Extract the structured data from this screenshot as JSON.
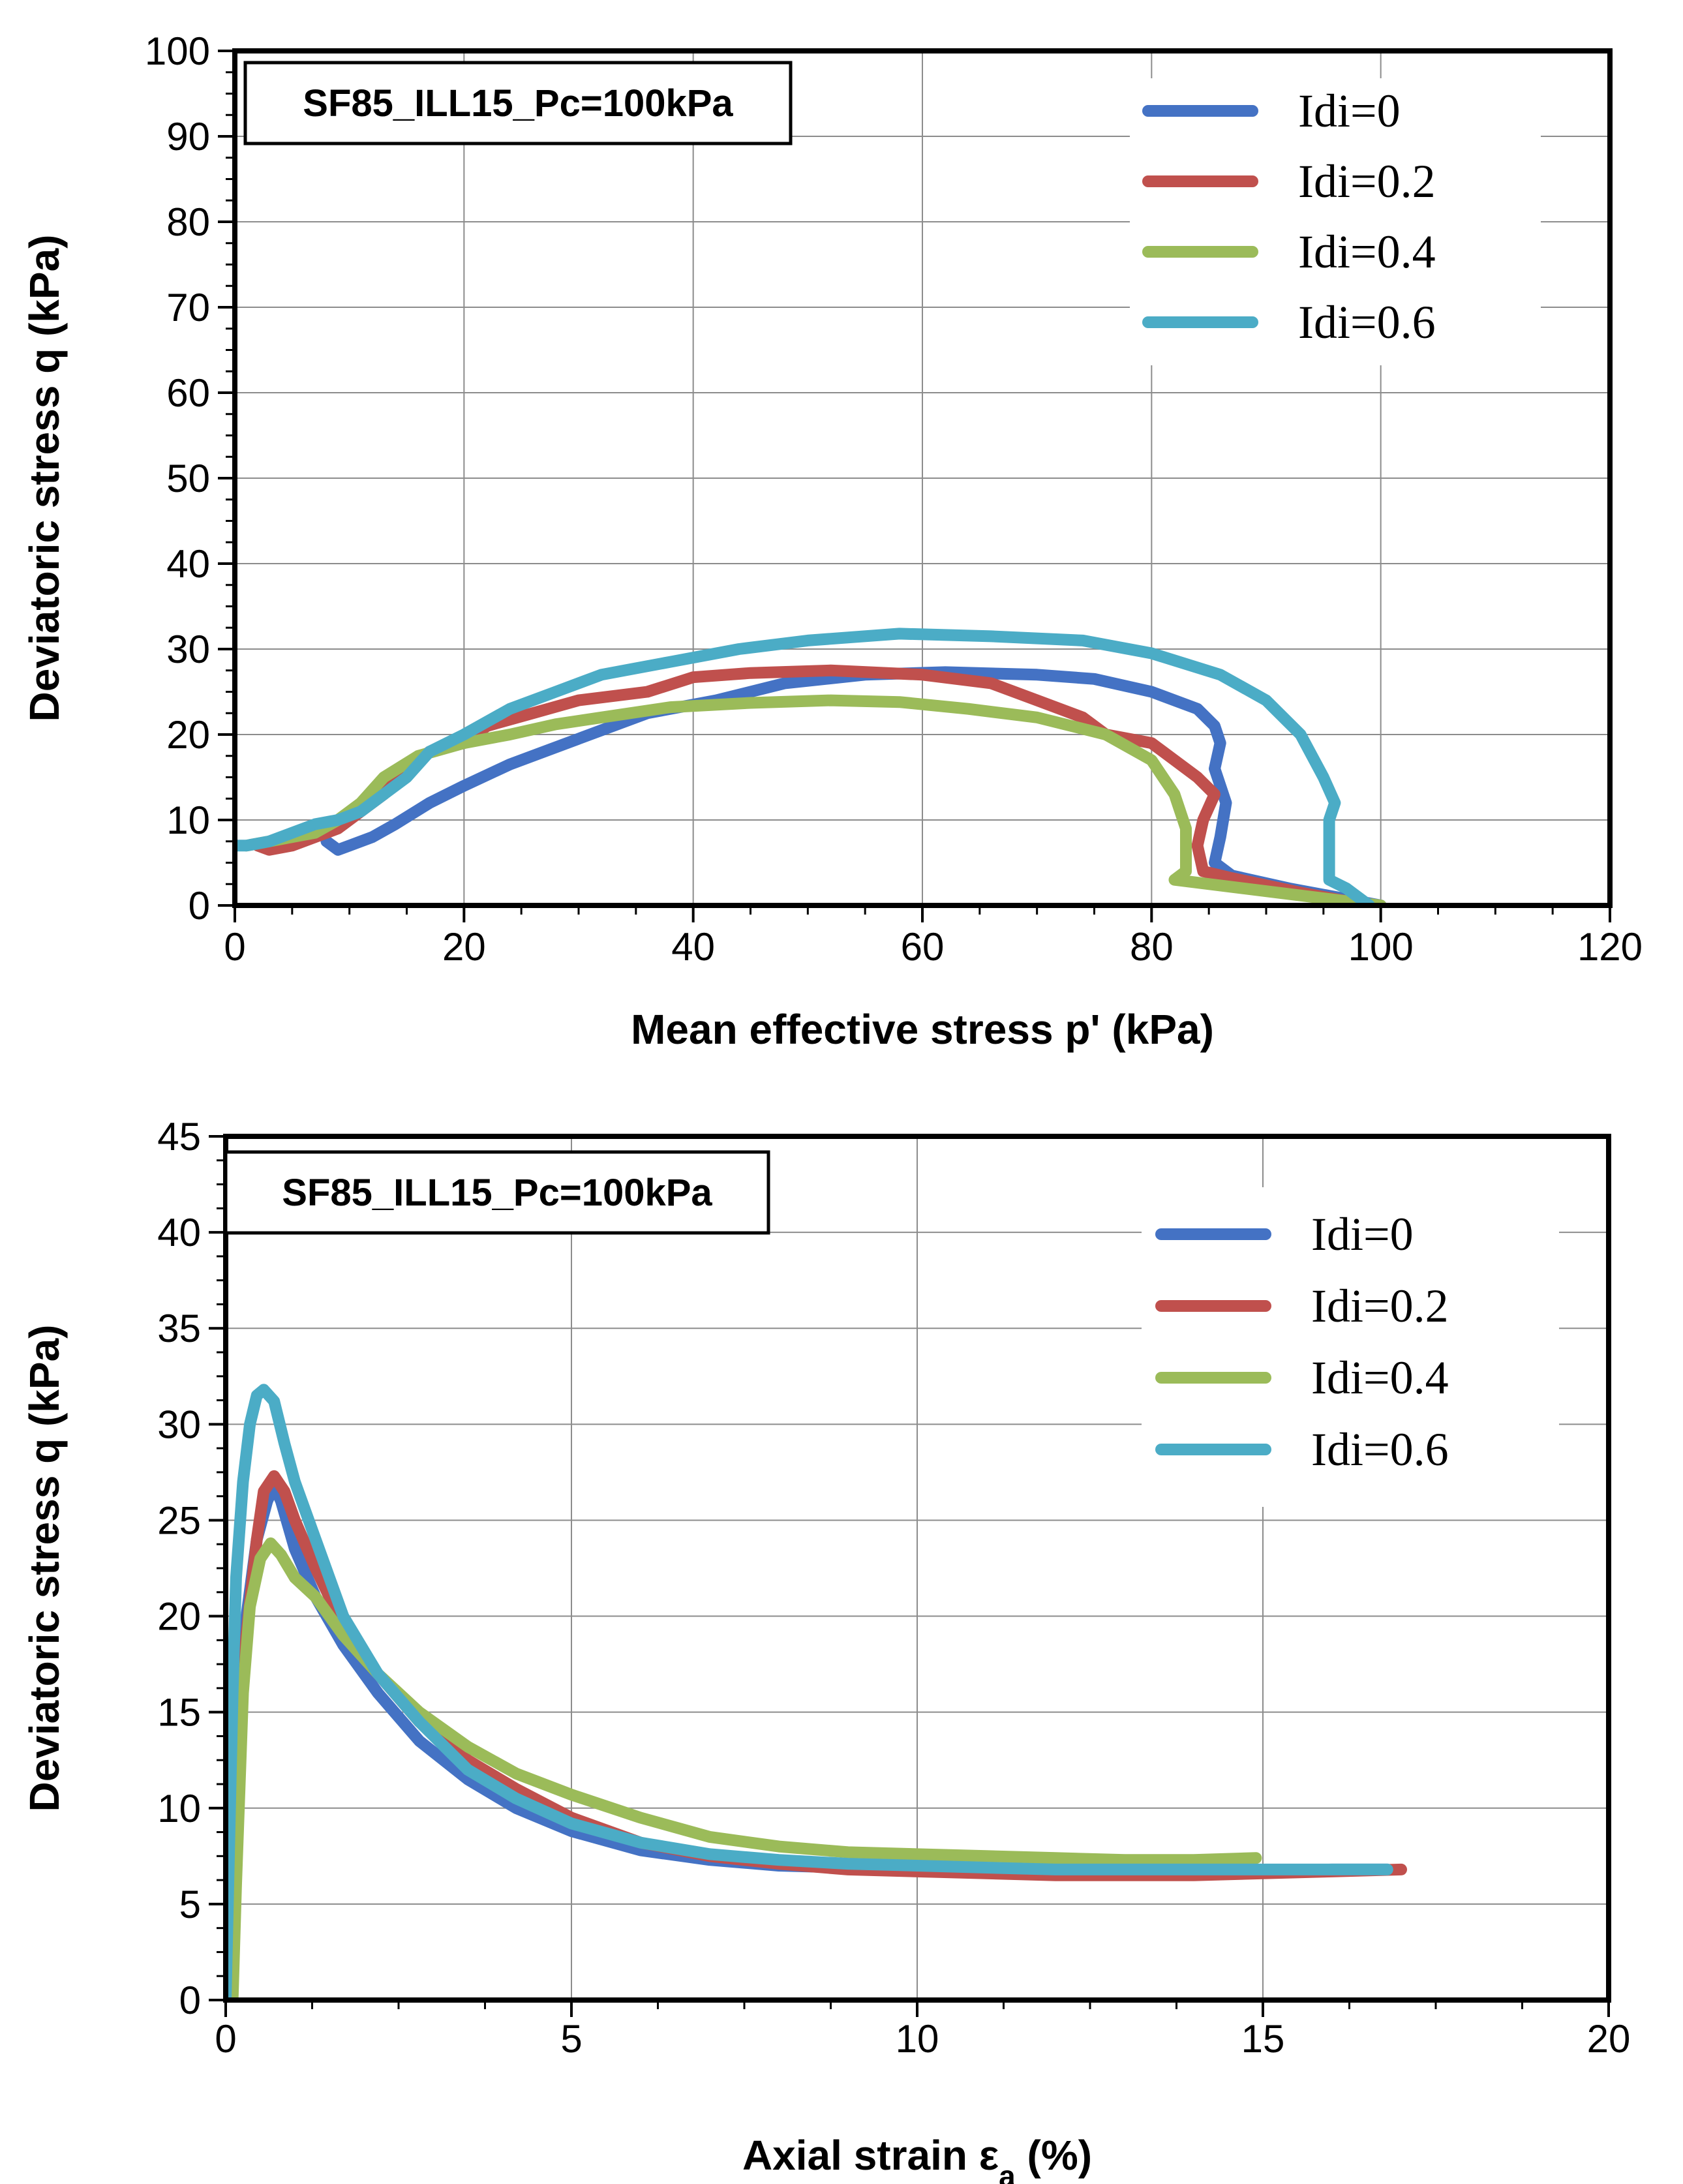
{
  "chart_data": [
    {
      "type": "line",
      "title": "SF85_ILL15_Pc=100kPa",
      "xlabel": "Mean effective stress p' (kPa)",
      "ylabel": "Deviatoric stress q (kPa)",
      "xlim": [
        0,
        120
      ],
      "ylim": [
        0,
        100
      ],
      "xticks": [
        0,
        20,
        40,
        60,
        80,
        100,
        120
      ],
      "yticks": [
        0,
        10,
        20,
        30,
        40,
        50,
        60,
        70,
        80,
        90,
        100
      ],
      "grid": true,
      "legend_position": "top-right",
      "series": [
        {
          "name": "Idi=0",
          "color": "#4472C4",
          "points": [
            [
              100,
              0
            ],
            [
              92,
              2
            ],
            [
              87,
              3.5
            ],
            [
              85.5,
              5
            ],
            [
              86,
              8
            ],
            [
              86.5,
              12
            ],
            [
              85.5,
              16
            ],
            [
              86,
              19
            ],
            [
              85.5,
              21
            ],
            [
              84,
              23
            ],
            [
              80,
              25
            ],
            [
              75,
              26.5
            ],
            [
              70,
              27
            ],
            [
              62,
              27.3
            ],
            [
              55,
              27
            ],
            [
              48,
              26
            ],
            [
              42,
              24
            ],
            [
              36,
              22.5
            ],
            [
              30,
              19.5
            ],
            [
              24,
              16.5
            ],
            [
              20,
              14
            ],
            [
              17,
              12
            ],
            [
              14,
              9.5
            ],
            [
              12,
              8
            ],
            [
              10,
              7
            ],
            [
              9,
              6.5
            ],
            [
              8.5,
              7
            ],
            [
              8,
              7.5
            ]
          ]
        },
        {
          "name": "Idi=0.2",
          "color": "#C0504D",
          "points": [
            [
              99,
              0
            ],
            [
              93,
              1.5
            ],
            [
              87,
              3.2
            ],
            [
              84.5,
              4
            ],
            [
              84,
              7
            ],
            [
              84.5,
              10
            ],
            [
              85.5,
              13
            ],
            [
              84,
              15
            ],
            [
              82,
              17
            ],
            [
              80,
              19
            ],
            [
              76,
              20
            ],
            [
              74,
              22
            ],
            [
              70,
              24
            ],
            [
              66,
              26
            ],
            [
              60,
              27
            ],
            [
              52,
              27.5
            ],
            [
              45,
              27.2
            ],
            [
              40,
              26.7
            ],
            [
              36,
              25
            ],
            [
              30,
              24
            ],
            [
              26,
              22.5
            ],
            [
              22,
              21
            ],
            [
              20,
              19
            ],
            [
              17,
              18
            ],
            [
              15,
              16
            ],
            [
              13,
              13
            ],
            [
              11,
              11
            ],
            [
              9,
              9
            ],
            [
              7,
              8
            ],
            [
              5,
              7
            ],
            [
              3,
              6.5
            ],
            [
              2,
              7
            ]
          ]
        },
        {
          "name": "Idi=0.4",
          "color": "#9BBB59",
          "points": [
            [
              100,
              0
            ],
            [
              94,
              1
            ],
            [
              88,
              2
            ],
            [
              82,
              3
            ],
            [
              83,
              4
            ],
            [
              83,
              7
            ],
            [
              83,
              9
            ],
            [
              82,
              13
            ],
            [
              80,
              17
            ],
            [
              76,
              20
            ],
            [
              70,
              22
            ],
            [
              64,
              23
            ],
            [
              58,
              23.8
            ],
            [
              52,
              24
            ],
            [
              45,
              23.7
            ],
            [
              38,
              23.2
            ],
            [
              32,
              22
            ],
            [
              28,
              21.2
            ],
            [
              24,
              20
            ],
            [
              20,
              19
            ],
            [
              16,
              17.5
            ],
            [
              13,
              15
            ],
            [
              11,
              12
            ],
            [
              9,
              10
            ],
            [
              7,
              8.5
            ],
            [
              5,
              8
            ],
            [
              3,
              7.5
            ],
            [
              1,
              7
            ]
          ]
        },
        {
          "name": "Idi=0.6",
          "color": "#4BACC6",
          "points": [
            [
              99,
              0
            ],
            [
              97,
              2
            ],
            [
              95.5,
              3
            ],
            [
              95.5,
              6
            ],
            [
              95.5,
              10
            ],
            [
              96,
              12
            ],
            [
              95,
              15
            ],
            [
              93,
              20
            ],
            [
              90,
              24
            ],
            [
              86,
              27
            ],
            [
              80,
              29.5
            ],
            [
              74,
              31
            ],
            [
              66,
              31.5
            ],
            [
              58,
              31.8
            ],
            [
              50,
              31
            ],
            [
              44,
              30
            ],
            [
              38,
              28.5
            ],
            [
              32,
              27
            ],
            [
              28,
              25
            ],
            [
              24,
              23
            ],
            [
              20,
              20
            ],
            [
              17,
              18
            ],
            [
              15,
              15
            ],
            [
              13,
              13
            ],
            [
              11,
              11
            ],
            [
              9,
              10
            ],
            [
              7,
              9.5
            ],
            [
              5,
              8.5
            ],
            [
              3,
              7.5
            ],
            [
              1,
              7
            ],
            [
              0,
              7
            ]
          ]
        }
      ]
    },
    {
      "type": "line",
      "title": "SF85_ILL15_Pc=100kPa",
      "xlabel": "Axial strain εa (%)",
      "ylabel": "Deviatoric stress q (kPa)",
      "xlim": [
        0,
        20
      ],
      "ylim": [
        0,
        45
      ],
      "xticks": [
        0,
        5,
        10,
        15,
        20
      ],
      "yticks": [
        0,
        5,
        10,
        15,
        20,
        25,
        30,
        35,
        40,
        45
      ],
      "grid": true,
      "legend_position": "top-right",
      "series": [
        {
          "name": "Idi=0",
          "color": "#4472C4",
          "points": [
            [
              0,
              0
            ],
            [
              0.05,
              5
            ],
            [
              0.1,
              10
            ],
            [
              0.2,
              15
            ],
            [
              0.3,
              20
            ],
            [
              0.45,
              24
            ],
            [
              0.6,
              26
            ],
            [
              0.7,
              26.8
            ],
            [
              0.8,
              26
            ],
            [
              1.0,
              23.5
            ],
            [
              1.3,
              21
            ],
            [
              1.7,
              18.5
            ],
            [
              2.2,
              16
            ],
            [
              2.8,
              13.5
            ],
            [
              3.5,
              11.5
            ],
            [
              4.2,
              10
            ],
            [
              5.0,
              8.8
            ],
            [
              6.0,
              7.8
            ],
            [
              7.0,
              7.3
            ],
            [
              8.0,
              7.0
            ],
            [
              9.0,
              6.9
            ],
            [
              10.0,
              6.8
            ],
            [
              11.0,
              6.8
            ],
            [
              12.0,
              6.7
            ],
            [
              13.0,
              6.7
            ],
            [
              14.0,
              6.7
            ],
            [
              15.0,
              6.7
            ],
            [
              16.0,
              6.8
            ],
            [
              16.8,
              6.8
            ]
          ]
        },
        {
          "name": "Idi=0.2",
          "color": "#C0504D",
          "points": [
            [
              0.1,
              3.5
            ],
            [
              0.15,
              8
            ],
            [
              0.2,
              14
            ],
            [
              0.3,
              19
            ],
            [
              0.45,
              24
            ],
            [
              0.55,
              26.5
            ],
            [
              0.7,
              27.3
            ],
            [
              0.85,
              26.5
            ],
            [
              1.0,
              25
            ],
            [
              1.3,
              22.5
            ],
            [
              1.7,
              19.5
            ],
            [
              2.2,
              17
            ],
            [
              2.8,
              14.5
            ],
            [
              3.5,
              12.5
            ],
            [
              4.2,
              11
            ],
            [
              5.0,
              9.5
            ],
            [
              6.0,
              8.2
            ],
            [
              7.0,
              7.5
            ],
            [
              8.0,
              7.1
            ],
            [
              9.0,
              6.8
            ],
            [
              10.0,
              6.7
            ],
            [
              11.0,
              6.6
            ],
            [
              12.0,
              6.5
            ],
            [
              13.0,
              6.5
            ],
            [
              14.0,
              6.5
            ],
            [
              15.0,
              6.6
            ],
            [
              16.0,
              6.7
            ],
            [
              17.0,
              6.8
            ]
          ]
        },
        {
          "name": "Idi=0.4",
          "color": "#9BBB59",
          "points": [
            [
              0.1,
              0
            ],
            [
              0.15,
              6
            ],
            [
              0.2,
              11
            ],
            [
              0.25,
              16
            ],
            [
              0.35,
              20.5
            ],
            [
              0.5,
              23
            ],
            [
              0.65,
              23.8
            ],
            [
              0.8,
              23.2
            ],
            [
              1.0,
              22
            ],
            [
              1.3,
              21
            ],
            [
              1.7,
              19
            ],
            [
              2.2,
              17
            ],
            [
              2.8,
              15
            ],
            [
              3.5,
              13.2
            ],
            [
              4.2,
              11.8
            ],
            [
              5.0,
              10.7
            ],
            [
              6.0,
              9.5
            ],
            [
              7.0,
              8.5
            ],
            [
              8.0,
              8.0
            ],
            [
              9.0,
              7.7
            ],
            [
              10.0,
              7.6
            ],
            [
              11.0,
              7.5
            ],
            [
              12.0,
              7.4
            ],
            [
              13.0,
              7.3
            ],
            [
              14.0,
              7.3
            ],
            [
              14.9,
              7.4
            ]
          ]
        },
        {
          "name": "Idi=0.6",
          "color": "#4BACC6",
          "points": [
            [
              0,
              0
            ],
            [
              0.05,
              8
            ],
            [
              0.1,
              16
            ],
            [
              0.15,
              22
            ],
            [
              0.25,
              27
            ],
            [
              0.35,
              30
            ],
            [
              0.45,
              31.5
            ],
            [
              0.55,
              31.8
            ],
            [
              0.7,
              31.2
            ],
            [
              0.85,
              29
            ],
            [
              1.0,
              27
            ],
            [
              1.3,
              24
            ],
            [
              1.7,
              20
            ],
            [
              2.2,
              17
            ],
            [
              2.8,
              14.5
            ],
            [
              3.5,
              12
            ],
            [
              4.2,
              10.5
            ],
            [
              5.0,
              9.2
            ],
            [
              6.0,
              8.2
            ],
            [
              7.0,
              7.6
            ],
            [
              8.0,
              7.3
            ],
            [
              9.0,
              7.1
            ],
            [
              10.0,
              7.0
            ],
            [
              11.0,
              6.9
            ],
            [
              12.0,
              6.8
            ],
            [
              13.0,
              6.8
            ],
            [
              14.0,
              6.8
            ],
            [
              15.0,
              6.8
            ],
            [
              16.0,
              6.8
            ],
            [
              16.8,
              6.8
            ]
          ]
        }
      ]
    }
  ]
}
